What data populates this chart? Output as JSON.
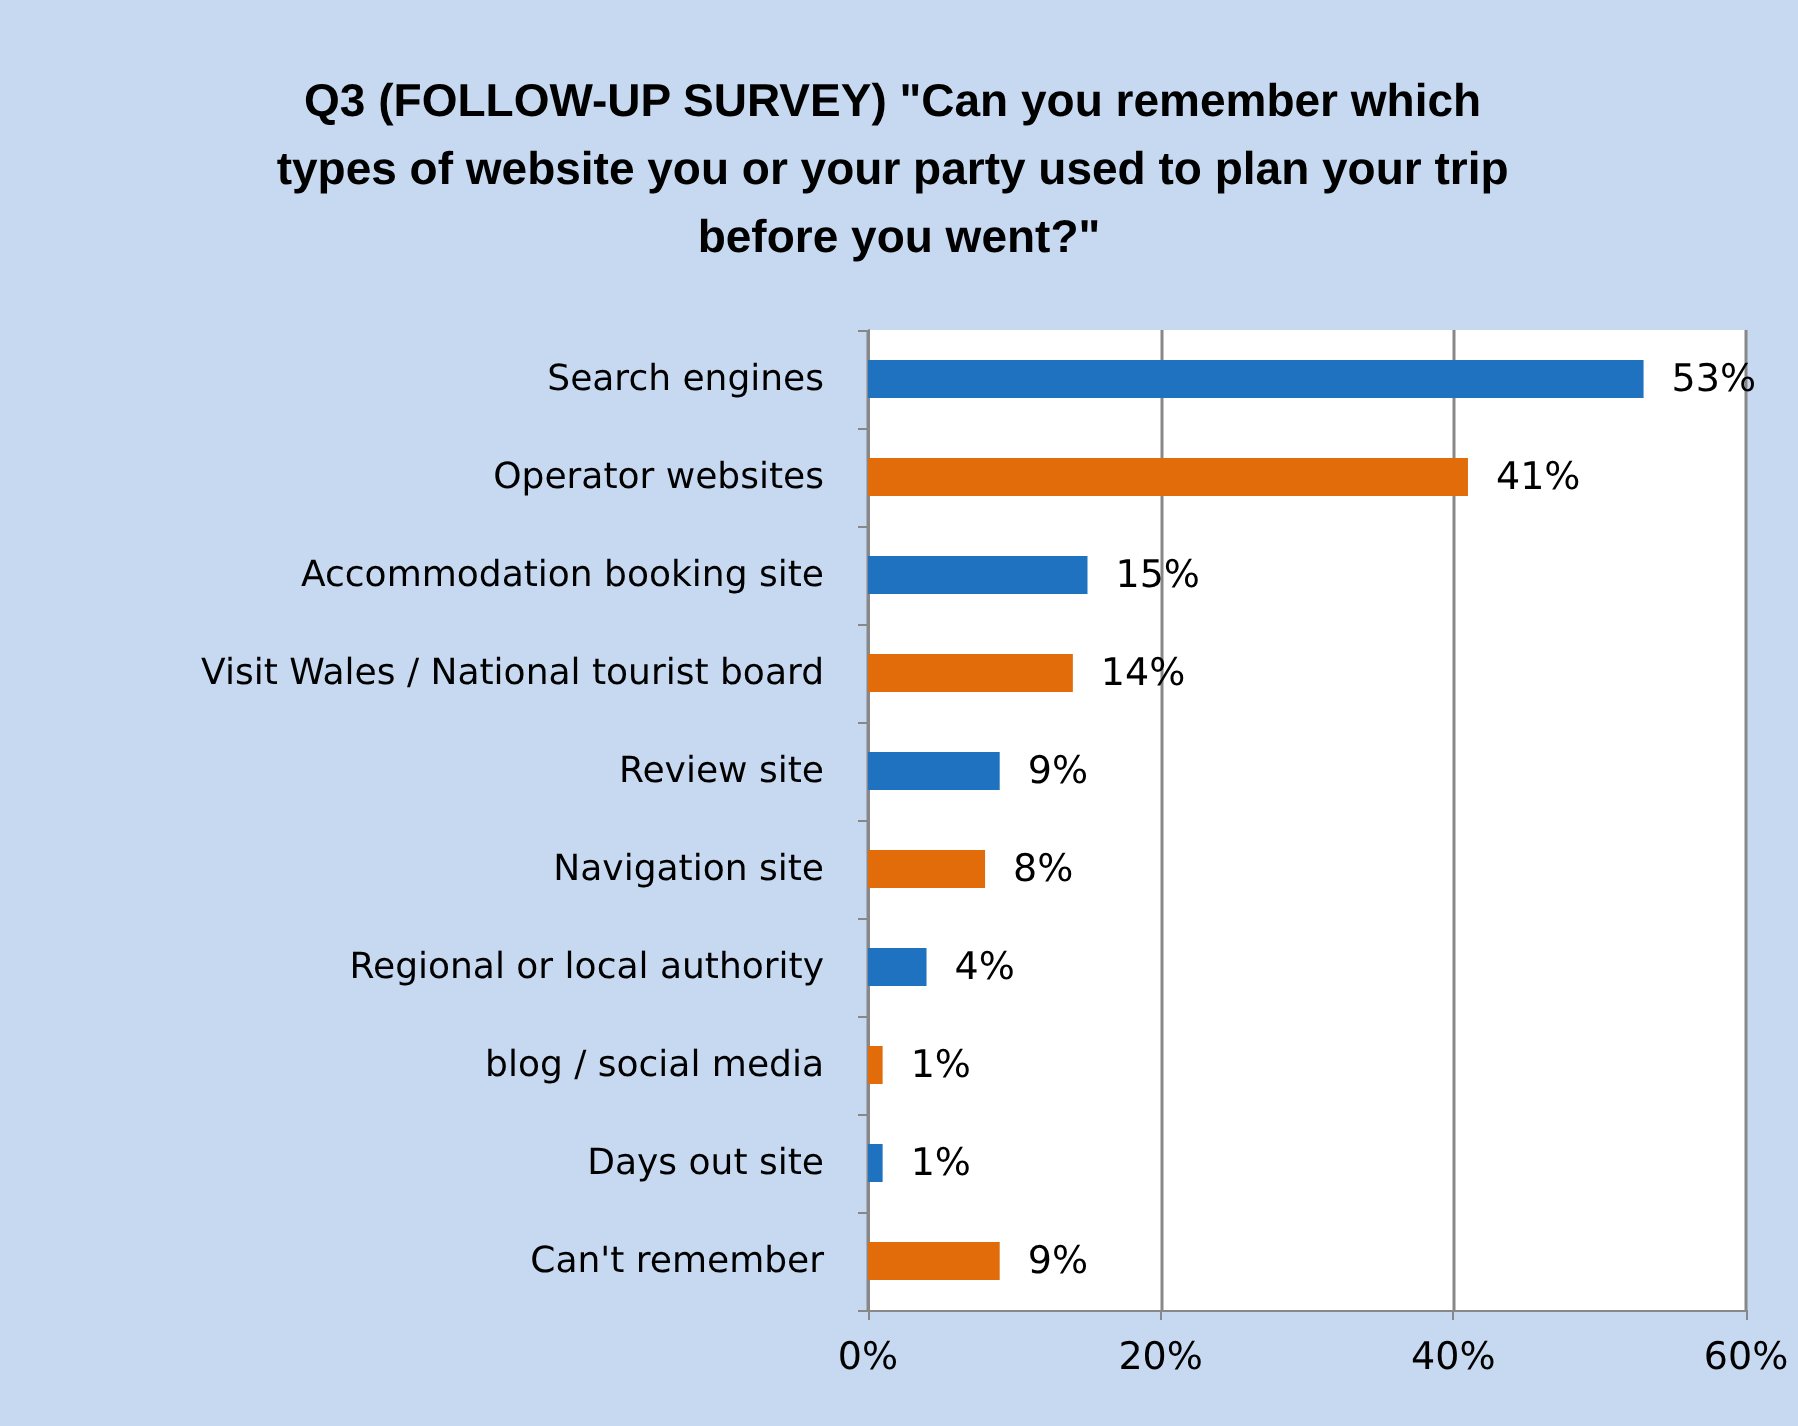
{
  "chart_data": {
    "type": "bar",
    "orientation": "horizontal",
    "title": "Q3 (FOLLOW-UP SURVEY) \"Can you remember which types of website you or your party used to plan your trip before you went?\"",
    "categories": [
      "Search engines",
      "Operator websites",
      "Accommodation booking site",
      "Visit Wales / National tourist board",
      "Review site",
      "Navigation site",
      "Regional or local authority",
      "blog / social media",
      "Days out site",
      "Can't remember"
    ],
    "values": [
      53,
      41,
      15,
      14,
      9,
      8,
      4,
      1,
      1,
      9
    ],
    "value_labels": [
      "53%",
      "41%",
      "15%",
      "14%",
      "9%",
      "8%",
      "4%",
      "1%",
      "1%",
      "9%"
    ],
    "colors": [
      "#1f72bf",
      "#e36c0a",
      "#1f72bf",
      "#e36c0a",
      "#1f72bf",
      "#e36c0a",
      "#1f72bf",
      "#e36c0a",
      "#1f72bf",
      "#e36c0a"
    ],
    "xlim": [
      0,
      60
    ],
    "xticks": [
      {
        "value": 0,
        "label": "0%"
      },
      {
        "value": 20,
        "label": "20%"
      },
      {
        "value": 40,
        "label": "40%"
      },
      {
        "value": 60,
        "label": "60%"
      }
    ],
    "grid": "x"
  }
}
